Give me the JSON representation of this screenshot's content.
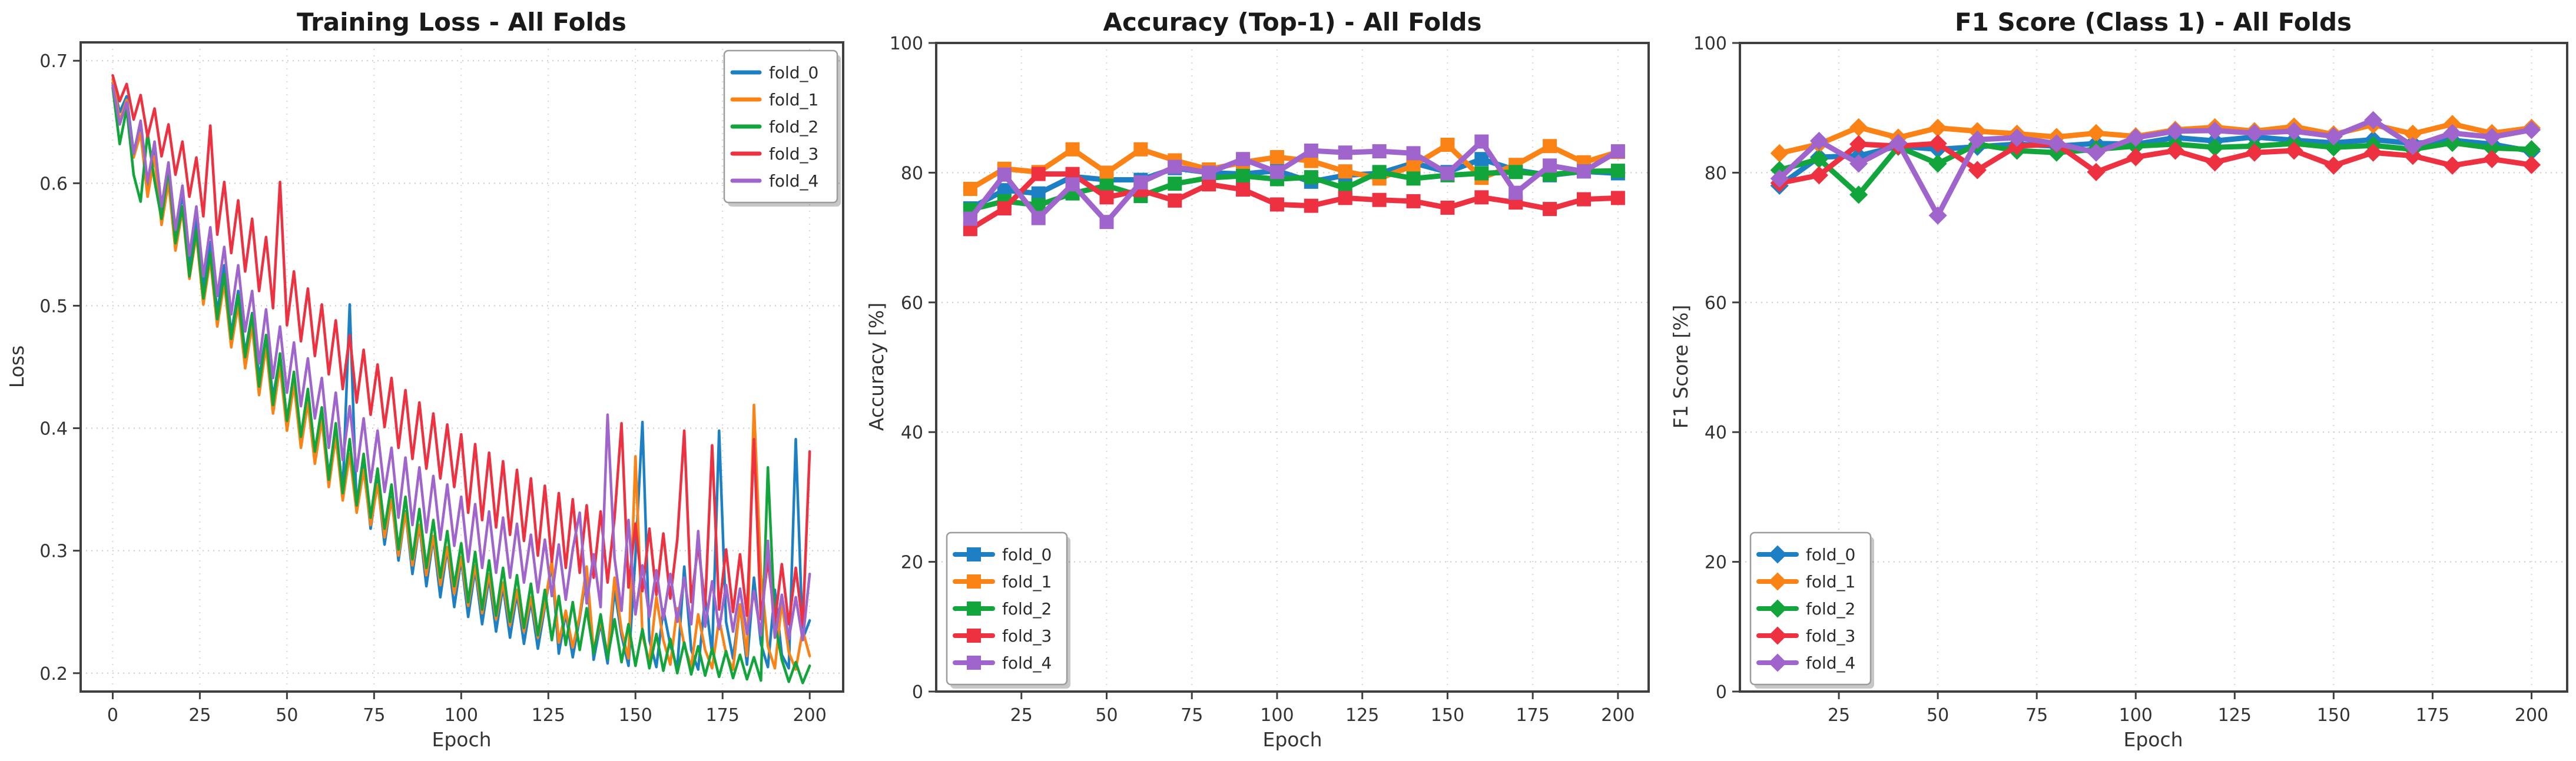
{
  "figure": {
    "background": "#ffffff",
    "spine_color": "#3f3f3f",
    "grid_color_h": "#c9c9c9",
    "grid_color_v": "#d6d6d6"
  },
  "palette": {
    "fold_0": "#1d80c5",
    "fold_1": "#fb8316",
    "fold_2": "#12a53c",
    "fold_3": "#ee3141",
    "fold_4": "#a065cc"
  },
  "folds": [
    "fold_0",
    "fold_1",
    "fold_2",
    "fold_3",
    "fold_4"
  ],
  "chart_data": [
    {
      "id": "training-loss",
      "type": "line",
      "title": "Training Loss - All Folds",
      "xlabel": "Epoch",
      "ylabel": "Loss",
      "xlim": [
        -9.2,
        209.6
      ],
      "ylim": [
        0.185,
        0.715
      ],
      "xticks": [
        0,
        25,
        50,
        75,
        100,
        125,
        150,
        175,
        200
      ],
      "yticks": [
        0.2,
        0.3,
        0.4,
        0.5,
        0.6,
        0.7
      ],
      "ydecimals": 1,
      "x_start": 0,
      "x_step": 2,
      "marker": "none",
      "line_width": 4.5,
      "legend_pos": "top-right",
      "legend_markers": false,
      "grid": true,
      "series": [
        {
          "name": "fold_0",
          "color_key": "fold_0",
          "values": [
            0.682,
            0.658,
            0.671,
            0.625,
            0.649,
            0.597,
            0.631,
            0.571,
            0.612,
            0.556,
            0.592,
            0.534,
            0.571,
            0.515,
            0.552,
            0.494,
            0.533,
            0.477,
            0.512,
            0.461,
            0.494,
            0.441,
            0.476,
            0.425,
            0.459,
            0.407,
            0.443,
            0.392,
            0.427,
            0.377,
            0.412,
            0.362,
            0.398,
            0.349,
            0.501,
            0.334,
            0.371,
            0.318,
            0.357,
            0.305,
            0.344,
            0.292,
            0.332,
            0.281,
            0.321,
            0.271,
            0.311,
            0.262,
            0.302,
            0.254,
            0.293,
            0.246,
            0.285,
            0.24,
            0.278,
            0.234,
            0.271,
            0.229,
            0.265,
            0.224,
            0.259,
            0.22,
            0.254,
            0.289,
            0.216,
            0.249,
            0.213,
            0.245,
            0.282,
            0.211,
            0.241,
            0.208,
            0.268,
            0.231,
            0.206,
            0.296,
            0.405,
            0.227,
            0.205,
            0.252,
            0.223,
            0.204,
            0.287,
            0.219,
            0.203,
            0.262,
            0.216,
            0.398,
            0.242,
            0.212,
            0.256,
            0.207,
            0.278,
            0.224,
            0.205,
            0.268,
            0.215,
            0.204,
            0.391,
            0.228,
            0.243
          ]
        },
        {
          "name": "fold_1",
          "color_key": "fold_1",
          "values": [
            0.685,
            0.651,
            0.668,
            0.621,
            0.641,
            0.589,
            0.622,
            0.566,
            0.601,
            0.545,
            0.578,
            0.522,
            0.558,
            0.501,
            0.538,
            0.483,
            0.519,
            0.466,
            0.501,
            0.449,
            0.484,
            0.427,
            0.467,
            0.412,
            0.451,
            0.398,
            0.436,
            0.384,
            0.421,
            0.371,
            0.407,
            0.352,
            0.393,
            0.341,
            0.379,
            0.331,
            0.366,
            0.321,
            0.354,
            0.311,
            0.342,
            0.296,
            0.331,
            0.288,
            0.321,
            0.28,
            0.312,
            0.272,
            0.303,
            0.265,
            0.295,
            0.255,
            0.288,
            0.249,
            0.281,
            0.244,
            0.274,
            0.239,
            0.268,
            0.234,
            0.262,
            0.229,
            0.256,
            0.292,
            0.225,
            0.251,
            0.221,
            0.247,
            0.287,
            0.218,
            0.243,
            0.215,
            0.278,
            0.235,
            0.212,
            0.377,
            0.231,
            0.209,
            0.262,
            0.227,
            0.207,
            0.253,
            0.223,
            0.205,
            0.248,
            0.219,
            0.204,
            0.244,
            0.216,
            0.203,
            0.256,
            0.214,
            0.419,
            0.281,
            0.222,
            0.204,
            0.258,
            0.217,
            0.203,
            0.235,
            0.214
          ]
        },
        {
          "name": "fold_2",
          "color_key": "fold_2",
          "values": [
            0.678,
            0.632,
            0.661,
            0.607,
            0.585,
            0.641,
            0.602,
            0.571,
            0.612,
            0.551,
            0.581,
            0.524,
            0.562,
            0.506,
            0.543,
            0.489,
            0.526,
            0.473,
            0.509,
            0.458,
            0.493,
            0.434,
            0.476,
            0.419,
            0.461,
            0.406,
            0.446,
            0.393,
            0.432,
            0.381,
            0.417,
            0.358,
            0.404,
            0.347,
            0.391,
            0.337,
            0.379,
            0.327,
            0.367,
            0.318,
            0.354,
            0.301,
            0.344,
            0.293,
            0.334,
            0.286,
            0.325,
            0.278,
            0.316,
            0.271,
            0.306,
            0.258,
            0.299,
            0.252,
            0.292,
            0.247,
            0.286,
            0.242,
            0.28,
            0.237,
            0.273,
            0.231,
            0.268,
            0.227,
            0.263,
            0.223,
            0.258,
            0.219,
            0.253,
            0.216,
            0.248,
            0.212,
            0.244,
            0.209,
            0.24,
            0.206,
            0.236,
            0.204,
            0.232,
            0.202,
            0.228,
            0.2,
            0.225,
            0.199,
            0.222,
            0.198,
            0.22,
            0.197,
            0.218,
            0.196,
            0.215,
            0.195,
            0.213,
            0.194,
            0.368,
            0.241,
            0.211,
            0.193,
            0.209,
            0.192,
            0.206
          ]
        },
        {
          "name": "fold_3",
          "color_key": "fold_3",
          "values": [
            0.688,
            0.667,
            0.681,
            0.652,
            0.672,
            0.638,
            0.661,
            0.622,
            0.648,
            0.607,
            0.634,
            0.589,
            0.621,
            0.573,
            0.647,
            0.558,
            0.601,
            0.543,
            0.586,
            0.528,
            0.571,
            0.512,
            0.556,
            0.498,
            0.601,
            0.484,
            0.528,
            0.471,
            0.514,
            0.459,
            0.501,
            0.444,
            0.488,
            0.432,
            0.476,
            0.421,
            0.464,
            0.411,
            0.452,
            0.401,
            0.441,
            0.384,
            0.431,
            0.375,
            0.421,
            0.367,
            0.412,
            0.359,
            0.403,
            0.352,
            0.395,
            0.331,
            0.387,
            0.325,
            0.38,
            0.319,
            0.373,
            0.313,
            0.366,
            0.308,
            0.359,
            0.296,
            0.353,
            0.291,
            0.347,
            0.286,
            0.342,
            0.282,
            0.337,
            0.278,
            0.332,
            0.274,
            0.327,
            0.404,
            0.27,
            0.322,
            0.267,
            0.318,
            0.264,
            0.314,
            0.261,
            0.309,
            0.398,
            0.258,
            0.305,
            0.255,
            0.386,
            0.252,
            0.301,
            0.25,
            0.297,
            0.247,
            0.391,
            0.244,
            0.293,
            0.242,
            0.289,
            0.24,
            0.286,
            0.239,
            0.381
          ]
        },
        {
          "name": "fold_4",
          "color_key": "fold_4",
          "values": [
            0.68,
            0.648,
            0.666,
            0.624,
            0.651,
            0.601,
            0.634,
            0.581,
            0.617,
            0.562,
            0.598,
            0.541,
            0.581,
            0.524,
            0.564,
            0.508,
            0.548,
            0.493,
            0.533,
            0.479,
            0.512,
            0.453,
            0.497,
            0.441,
            0.483,
            0.429,
            0.47,
            0.418,
            0.457,
            0.408,
            0.441,
            0.384,
            0.429,
            0.374,
            0.418,
            0.365,
            0.408,
            0.356,
            0.398,
            0.348,
            0.384,
            0.327,
            0.376,
            0.321,
            0.368,
            0.315,
            0.361,
            0.309,
            0.354,
            0.304,
            0.344,
            0.291,
            0.338,
            0.286,
            0.332,
            0.282,
            0.327,
            0.278,
            0.322,
            0.274,
            0.313,
            0.266,
            0.309,
            0.263,
            0.305,
            0.26,
            0.301,
            0.331,
            0.257,
            0.297,
            0.254,
            0.411,
            0.294,
            0.251,
            0.325,
            0.248,
            0.288,
            0.246,
            0.284,
            0.244,
            0.281,
            0.242,
            0.278,
            0.24,
            0.316,
            0.238,
            0.275,
            0.236,
            0.272,
            0.234,
            0.269,
            0.232,
            0.267,
            0.231,
            0.308,
            0.229,
            0.264,
            0.228,
            0.262,
            0.227,
            0.281
          ]
        }
      ]
    },
    {
      "id": "accuracy-top1",
      "type": "line",
      "title": "Accuracy (Top-1) - All Folds",
      "xlabel": "Epoch",
      "ylabel": "Accuracy [%]",
      "xlim": [
        0,
        209
      ],
      "ylim": [
        0,
        100
      ],
      "xticks": [
        25,
        50,
        75,
        100,
        125,
        150,
        175,
        200
      ],
      "yticks": [
        0,
        20,
        40,
        60,
        80,
        100
      ],
      "ydecimals": 0,
      "x_start": 10,
      "x_step": 10,
      "marker": "square",
      "line_width": 9,
      "legend_pos": "bottom-left",
      "legend_markers": true,
      "grid": true,
      "series": [
        {
          "name": "fold_0",
          "color_key": "fold_0",
          "values": [
            74.5,
            77.3,
            76.8,
            79.4,
            78.9,
            78.9,
            80.7,
            80.0,
            79.8,
            80.3,
            78.6,
            79.6,
            79.9,
            81.5,
            80.1,
            82.1,
            80.4,
            79.6,
            80.2,
            79.9
          ]
        },
        {
          "name": "fold_1",
          "color_key": "fold_1",
          "values": [
            77.5,
            80.6,
            80.1,
            83.6,
            80.0,
            83.6,
            81.9,
            80.5,
            81.6,
            82.4,
            81.8,
            80.2,
            79.1,
            81.1,
            84.3,
            79.2,
            81.2,
            84.1,
            81.6,
            83.2
          ]
        },
        {
          "name": "fold_2",
          "color_key": "fold_2",
          "values": [
            74.3,
            75.6,
            75.0,
            76.8,
            78.0,
            76.4,
            78.3,
            79.2,
            79.5,
            79.0,
            79.3,
            77.6,
            80.1,
            79.1,
            79.6,
            79.9,
            80.1,
            79.7,
            80.2,
            80.3
          ]
        },
        {
          "name": "fold_3",
          "color_key": "fold_3",
          "values": [
            71.3,
            74.5,
            79.8,
            79.8,
            76.2,
            77.3,
            75.7,
            78.2,
            77.4,
            75.1,
            74.9,
            76.1,
            75.8,
            75.6,
            74.6,
            76.2,
            75.4,
            74.4,
            75.9,
            76.1
          ]
        },
        {
          "name": "fold_4",
          "color_key": "fold_4",
          "values": [
            72.9,
            79.7,
            73.0,
            78.2,
            72.4,
            78.5,
            80.9,
            80.0,
            82.1,
            80.1,
            83.4,
            83.1,
            83.3,
            83.0,
            79.9,
            84.8,
            76.9,
            81.1,
            80.2,
            83.3
          ]
        }
      ]
    },
    {
      "id": "f1-class1",
      "type": "line",
      "title": "F1 Score (Class 1) - All Folds",
      "xlabel": "Epoch",
      "ylabel": "F1 Score [%]",
      "xlim": [
        0,
        209
      ],
      "ylim": [
        0,
        100
      ],
      "xticks": [
        25,
        50,
        75,
        100,
        125,
        150,
        175,
        200
      ],
      "yticks": [
        0,
        20,
        40,
        60,
        80,
        100
      ],
      "ydecimals": 0,
      "x_start": 10,
      "x_step": 10,
      "marker": "diamond",
      "line_width": 9,
      "legend_pos": "bottom-left",
      "legend_markers": true,
      "grid": true,
      "series": [
        {
          "name": "fold_0",
          "color_key": "fold_0",
          "values": [
            78.0,
            82.4,
            82.6,
            84.1,
            83.6,
            84.0,
            84.4,
            84.1,
            84.5,
            84.4,
            85.4,
            84.9,
            85.5,
            85.0,
            84.6,
            85.1,
            84.5,
            85.0,
            84.4,
            83.3
          ]
        },
        {
          "name": "fold_1",
          "color_key": "fold_1",
          "values": [
            83.0,
            84.4,
            87.0,
            85.4,
            86.9,
            86.4,
            86.0,
            85.5,
            86.1,
            85.6,
            86.6,
            87.0,
            86.4,
            87.1,
            85.9,
            87.4,
            86.0,
            87.5,
            86.1,
            86.9
          ]
        },
        {
          "name": "fold_2",
          "color_key": "fold_2",
          "values": [
            80.4,
            82.1,
            76.6,
            84.0,
            81.4,
            84.4,
            83.4,
            83.1,
            83.6,
            84.1,
            84.4,
            83.9,
            84.1,
            84.5,
            83.9,
            84.2,
            83.6,
            84.6,
            83.8,
            83.6
          ]
        },
        {
          "name": "fold_3",
          "color_key": "fold_3",
          "values": [
            78.4,
            79.6,
            84.4,
            84.1,
            84.5,
            80.4,
            84.1,
            84.4,
            80.1,
            82.4,
            83.4,
            81.6,
            83.1,
            83.4,
            81.1,
            83.1,
            82.6,
            81.1,
            82.1,
            81.2
          ]
        },
        {
          "name": "fold_4",
          "color_key": "fold_4",
          "values": [
            79.1,
            84.9,
            81.4,
            84.6,
            73.4,
            85.1,
            85.4,
            84.5,
            83.1,
            85.4,
            86.4,
            86.5,
            86.1,
            86.4,
            85.6,
            88.1,
            84.1,
            86.1,
            85.5,
            86.6
          ]
        }
      ]
    }
  ]
}
